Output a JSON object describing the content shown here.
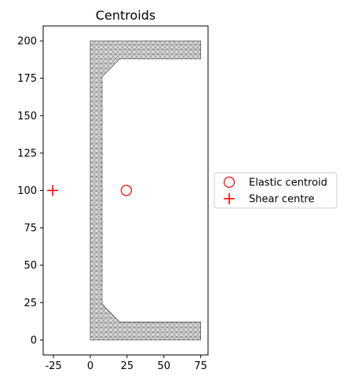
{
  "chart_data": {
    "type": "scatter",
    "title": "Centroids",
    "xlabel": "",
    "ylabel": "",
    "xlim": [
      -32,
      80
    ],
    "ylim": [
      -10,
      210
    ],
    "xticks": [
      -25,
      0,
      25,
      50,
      75
    ],
    "yticks": [
      0,
      25,
      50,
      75,
      100,
      125,
      150,
      175,
      200
    ],
    "grid": false,
    "legend_position": "right, outside",
    "section": {
      "description": "triangular mesh of channel section",
      "outline": [
        [
          0,
          0
        ],
        [
          75,
          0
        ],
        [
          75,
          12
        ],
        [
          20,
          12
        ],
        [
          8,
          24
        ],
        [
          8,
          176
        ],
        [
          20,
          188
        ],
        [
          75,
          188
        ],
        [
          75,
          200
        ],
        [
          0,
          200
        ]
      ],
      "fill": "#b0b0b0",
      "mesh_color": "#404040"
    },
    "series": [
      {
        "name": "Elastic centroid",
        "marker": "circle-open",
        "color": "#ff0000",
        "x": [
          24.5
        ],
        "y": [
          100
        ]
      },
      {
        "name": "Shear centre",
        "marker": "plus",
        "color": "#ff0000",
        "x": [
          -25.5
        ],
        "y": [
          100
        ]
      }
    ]
  }
}
